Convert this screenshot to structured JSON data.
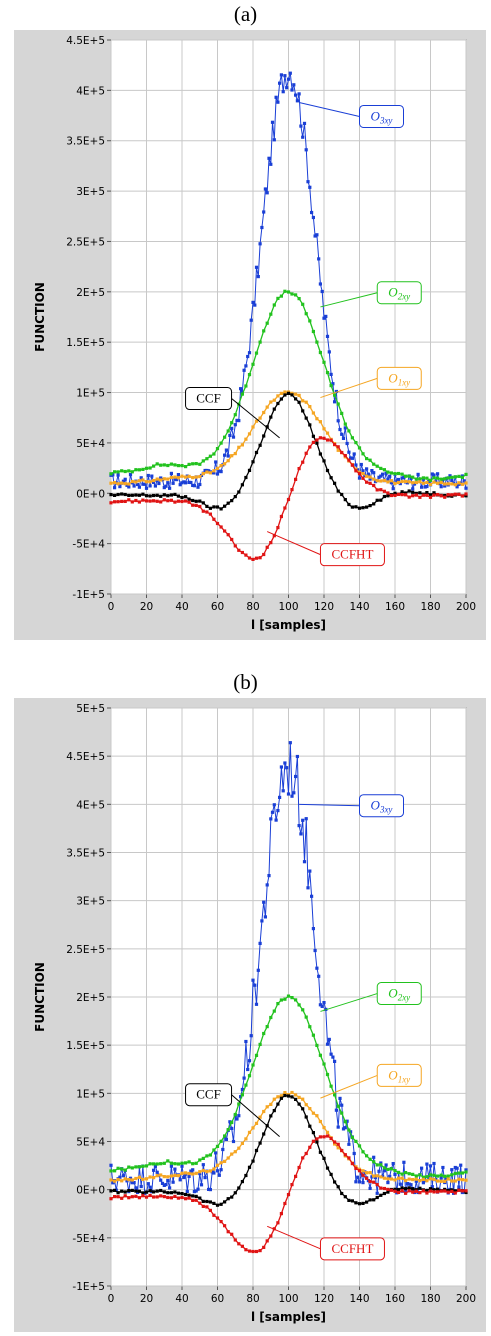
{
  "figure": {
    "caption_a": "(a)",
    "caption_b": "(b)"
  },
  "chart_data": [
    {
      "type": "line",
      "panel": "a",
      "xlabel": "l [samples]",
      "ylabel": "FUNCTION",
      "xlim": [
        0,
        200
      ],
      "ylim": [
        -100000,
        450000
      ],
      "x_ticks": [
        "0",
        "20",
        "40",
        "60",
        "80",
        "100",
        "120",
        "140",
        "160",
        "180",
        "200"
      ],
      "y_ticks": [
        "-1E+5",
        "-5E+4",
        "0E+0",
        "5E+4",
        "1E+5",
        "1.5E+5",
        "2E+5",
        "2.5E+5",
        "3E+5",
        "3.5E+5",
        "4E+5",
        "4.5E+5"
      ],
      "grid": true,
      "series": [
        {
          "name": "O3xy",
          "label_main": "O",
          "label_sub": "3xy",
          "color": "#1a3fd6",
          "peak": 420000,
          "center": 100,
          "width": 15,
          "base": 12000,
          "noise": 15000
        },
        {
          "name": "O2xy",
          "label_main": "O",
          "label_sub": "2xy",
          "color": "#22c21e",
          "peak": 200000,
          "center": 100,
          "width": 20,
          "base": 20000
        },
        {
          "name": "O1xy",
          "label_main": "O",
          "label_sub": "1xy",
          "color": "#f5a623",
          "peak": 100000,
          "center": 100,
          "width": 20,
          "base": 10000
        },
        {
          "name": "CCF",
          "label_main": "CCF",
          "color": "#000000",
          "peak": 100000,
          "center": 100,
          "width": 14
        },
        {
          "name": "CCFHT",
          "label_main": "CCFHT",
          "color": "#e01414",
          "peak": 65000,
          "center": 100,
          "width": 16
        }
      ]
    },
    {
      "type": "line",
      "panel": "b",
      "xlabel": "l [samples]",
      "ylabel": "FUNCTION",
      "xlim": [
        0,
        200
      ],
      "ylim": [
        -100000,
        500000
      ],
      "x_ticks": [
        "0",
        "20",
        "40",
        "60",
        "80",
        "100",
        "120",
        "140",
        "160",
        "180",
        "200"
      ],
      "y_ticks": [
        "-1E+5",
        "-5E+4",
        "0E+0",
        "5E+4",
        "1E+5",
        "1.5E+5",
        "2E+5",
        "2.5E+5",
        "3E+5",
        "3.5E+5",
        "4E+5",
        "4.5E+5",
        "5E+5"
      ],
      "grid": true,
      "series": [
        {
          "name": "O3xy",
          "label_main": "O",
          "label_sub": "3xy",
          "color": "#1a3fd6",
          "peak": 440000,
          "center": 100,
          "width": 15,
          "base": 12000,
          "noise": 32000
        },
        {
          "name": "O2xy",
          "label_main": "O",
          "label_sub": "2xy",
          "color": "#22c21e",
          "peak": 200000,
          "center": 100,
          "width": 20,
          "base": 20000
        },
        {
          "name": "O1xy",
          "label_main": "O",
          "label_sub": "1xy",
          "color": "#f5a623",
          "peak": 100000,
          "center": 100,
          "width": 20,
          "base": 10000
        },
        {
          "name": "CCF",
          "label_main": "CCF",
          "color": "#000000",
          "peak": 100000,
          "center": 100,
          "width": 14
        },
        {
          "name": "CCFHT",
          "label_main": "CCFHT",
          "color": "#e01414",
          "peak": 65000,
          "center": 100,
          "width": 16
        }
      ]
    }
  ]
}
